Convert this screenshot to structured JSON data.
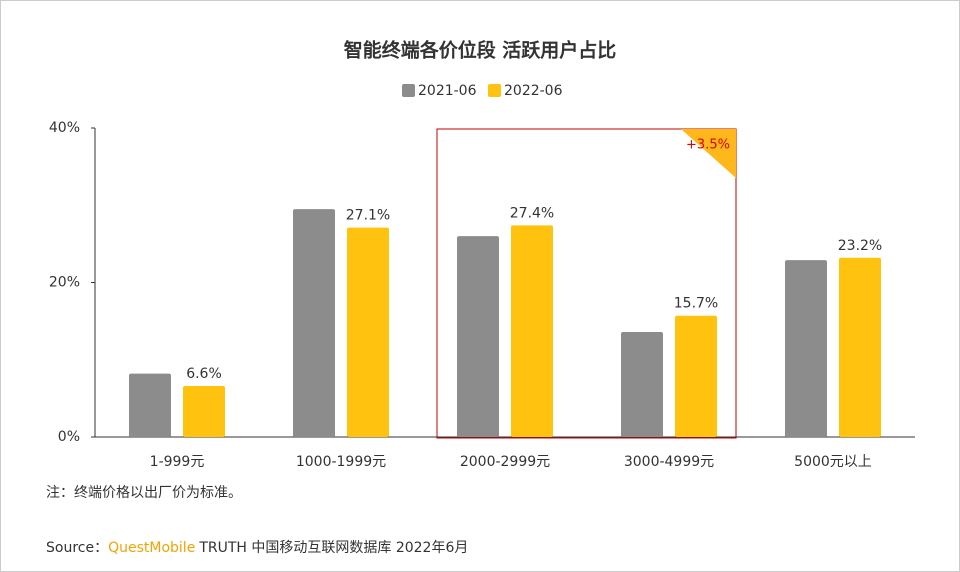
{
  "chart_data": {
    "type": "bar",
    "title": "智能终端各价位段 活跃用户占比",
    "categories": [
      "1-999元",
      "1000-1999元",
      "2000-2999元",
      "3000-4999元",
      "5000元以上"
    ],
    "series": [
      {
        "name": "2021-06",
        "color": "#8c8c8c",
        "values": [
          8.2,
          29.5,
          26.0,
          13.6,
          22.9
        ]
      },
      {
        "name": "2022-06",
        "color": "#ffc20e",
        "values": [
          6.6,
          27.1,
          27.4,
          15.7,
          23.2
        ],
        "value_labels": [
          "6.6%",
          "27.1%",
          "27.4%",
          "15.7%",
          "23.2%"
        ]
      }
    ],
    "ylim": [
      0,
      40
    ],
    "yticks": [
      {
        "value": 0,
        "label": "0%"
      },
      {
        "value": 20,
        "label": "20%"
      },
      {
        "value": 40,
        "label": "40%"
      }
    ],
    "grid": false,
    "legend": "top",
    "annotation": "+3.5%",
    "note": "注：终端价格以出厂价为标准。",
    "source": {
      "label": "Source：",
      "brand": "QuestMobile",
      "text": "TRUTH 中国移动互联网数据库 2022年6月"
    }
  }
}
